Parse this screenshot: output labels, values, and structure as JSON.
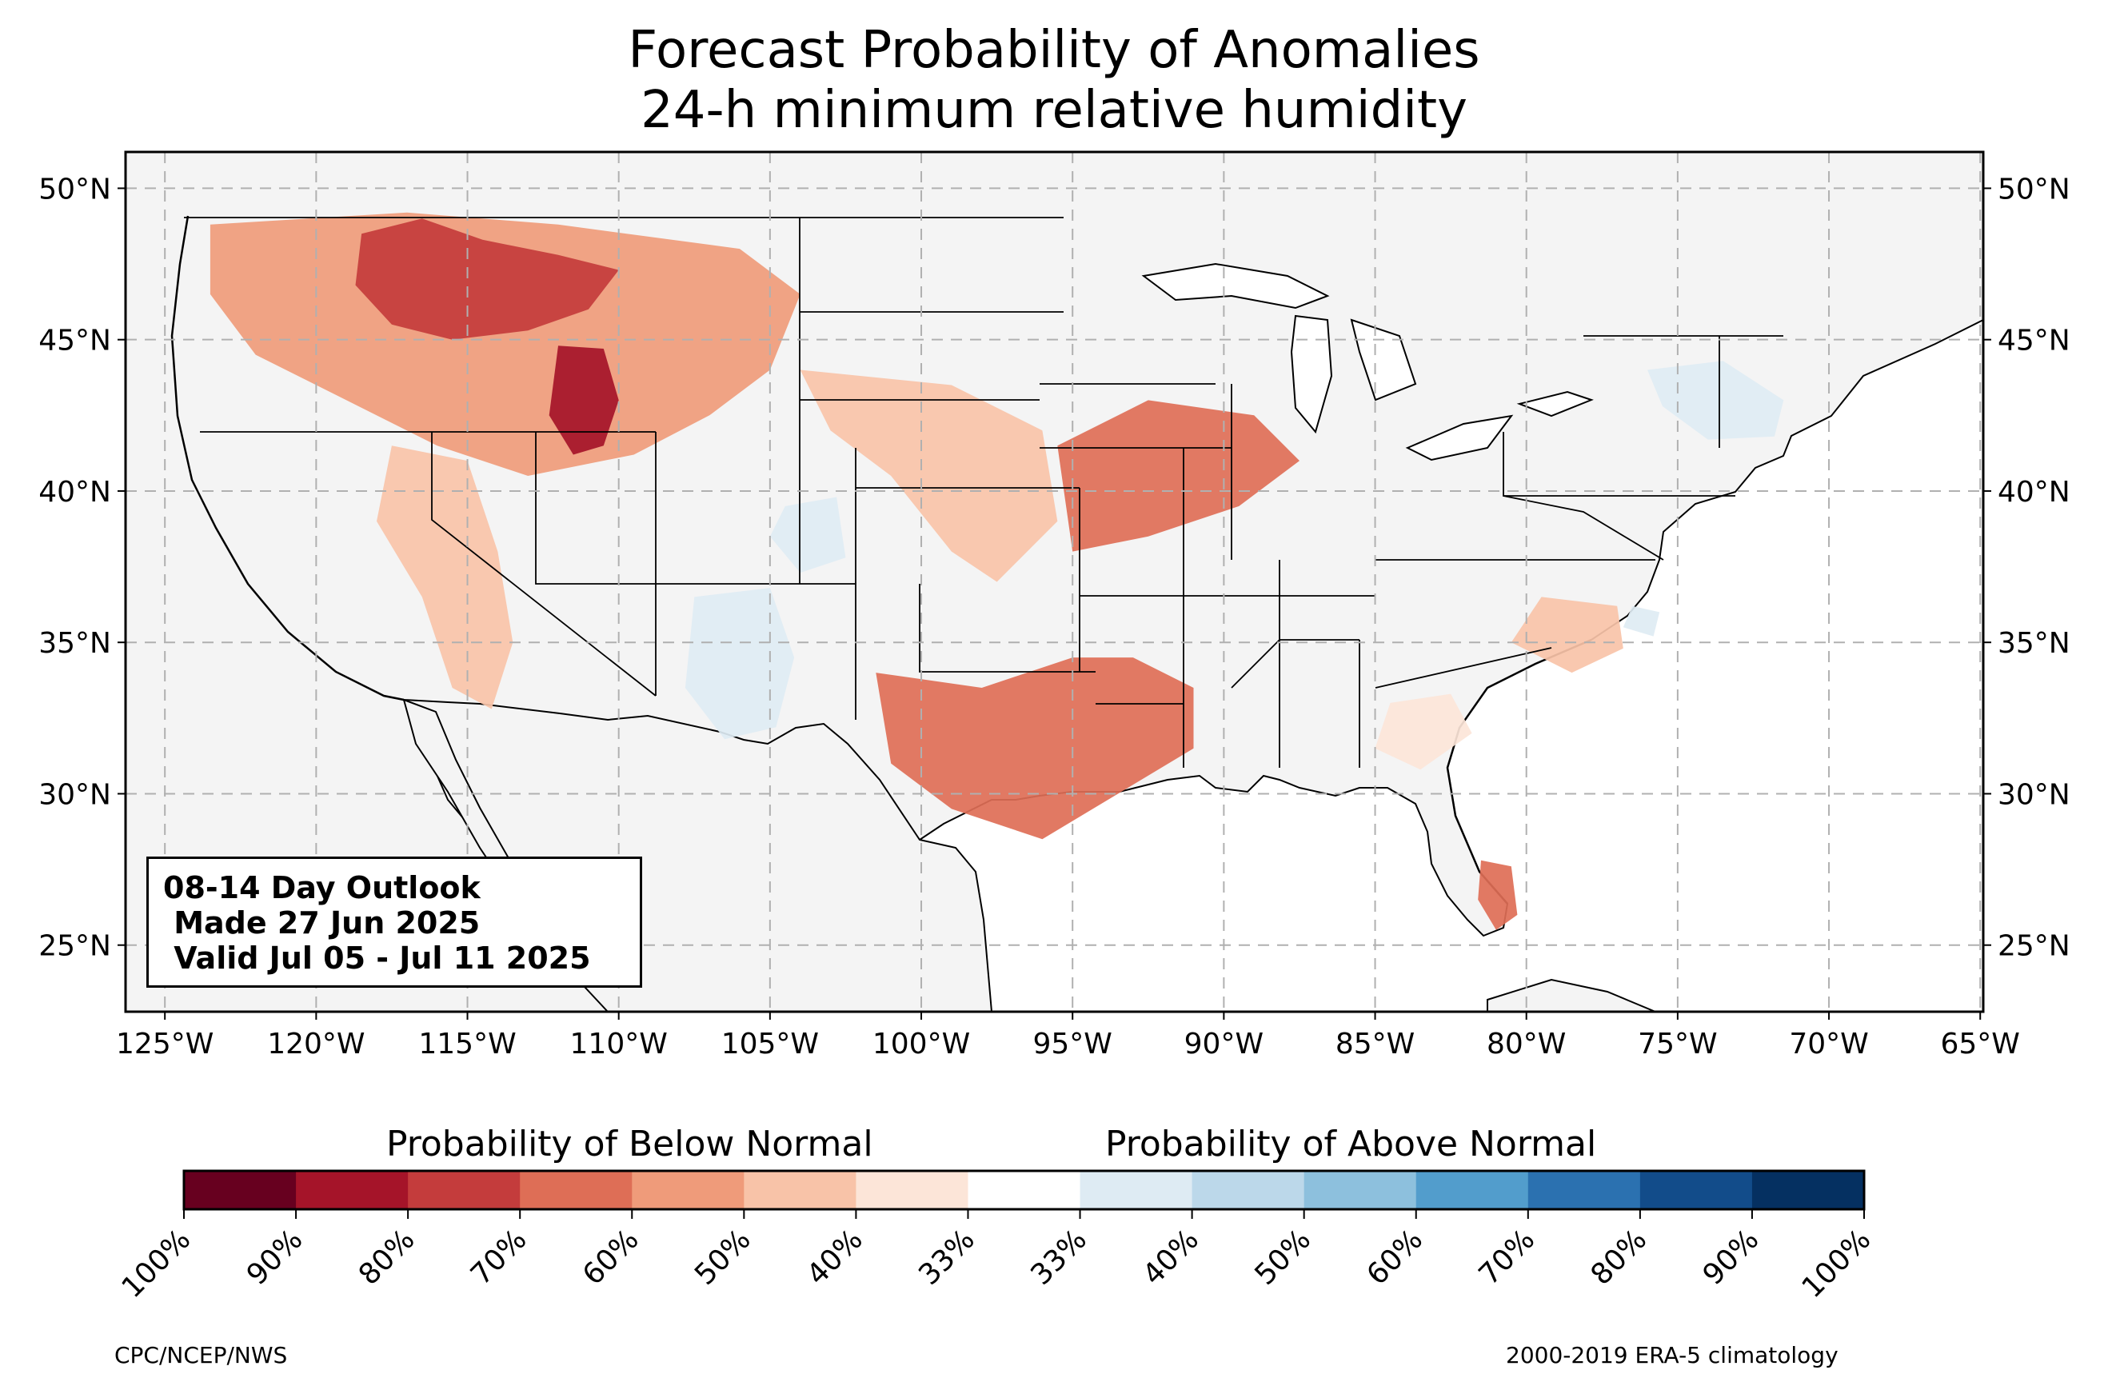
{
  "title": {
    "line1": "Forecast Probability of Anomalies",
    "line2": "24-h minimum relative humidity"
  },
  "map": {
    "region": "contiguous United States",
    "projection": "plate carree",
    "lon_range": [
      -126.3,
      -64.9
    ],
    "lat_range": [
      22.8,
      51.2
    ],
    "lat_ticks": [
      {
        "value": 50,
        "label": "50°N"
      },
      {
        "value": 45,
        "label": "45°N"
      },
      {
        "value": 40,
        "label": "40°N"
      },
      {
        "value": 35,
        "label": "35°N"
      },
      {
        "value": 30,
        "label": "30°N"
      },
      {
        "value": 25,
        "label": "25°N"
      }
    ],
    "lon_ticks": [
      {
        "value": -125,
        "label": "125°W"
      },
      {
        "value": -120,
        "label": "120°W"
      },
      {
        "value": -115,
        "label": "115°W"
      },
      {
        "value": -110,
        "label": "110°W"
      },
      {
        "value": -105,
        "label": "105°W"
      },
      {
        "value": -100,
        "label": "100°W"
      },
      {
        "value": -95,
        "label": "95°W"
      },
      {
        "value": -90,
        "label": "90°W"
      },
      {
        "value": -85,
        "label": "85°W"
      },
      {
        "value": -80,
        "label": "80°W"
      },
      {
        "value": -75,
        "label": "75°W"
      },
      {
        "value": -70,
        "label": "70°W"
      },
      {
        "value": -65,
        "label": "65°W"
      }
    ],
    "gridlines": "dashed",
    "land_color": "#f4f4f4",
    "anomaly_areas": [
      {
        "name": "Pacific Northwest / northern Rockies",
        "category": "below",
        "probability": "50-60%",
        "polygon": [
          [
            -123.5,
            48.8
          ],
          [
            -117,
            49.2
          ],
          [
            -112,
            48.8
          ],
          [
            -106,
            48
          ],
          [
            -104,
            46.5
          ],
          [
            -105,
            44
          ],
          [
            -107,
            42.5
          ],
          [
            -109.5,
            41.2
          ],
          [
            -113,
            40.5
          ],
          [
            -116,
            41.5
          ],
          [
            -119,
            43
          ],
          [
            -122,
            44.5
          ],
          [
            -123.5,
            46.5
          ]
        ]
      },
      {
        "name": "Idaho / western Montana core",
        "category": "below",
        "probability": "70-80%",
        "polygon": [
          [
            -118.5,
            48.5
          ],
          [
            -116.5,
            49
          ],
          [
            -114.5,
            48.3
          ],
          [
            -112,
            47.8
          ],
          [
            -110,
            47.3
          ],
          [
            -111,
            46
          ],
          [
            -113,
            45.3
          ],
          [
            -115.5,
            45
          ],
          [
            -117.5,
            45.5
          ],
          [
            -118.7,
            46.8
          ]
        ]
      },
      {
        "name": "western Wyoming core",
        "category": "below",
        "probability": "80-90%",
        "polygon": [
          [
            -112,
            44.8
          ],
          [
            -110.5,
            44.7
          ],
          [
            -110,
            43
          ],
          [
            -110.5,
            41.5
          ],
          [
            -111.5,
            41.2
          ],
          [
            -112.3,
            42.5
          ]
        ]
      },
      {
        "name": "Nevada / Arizona",
        "category": "below",
        "probability": "40-50%",
        "polygon": [
          [
            -117.5,
            41.5
          ],
          [
            -115,
            41
          ],
          [
            -114,
            38
          ],
          [
            -113.5,
            35
          ],
          [
            -114.2,
            32.8
          ],
          [
            -115.5,
            33.5
          ],
          [
            -116.5,
            36.5
          ],
          [
            -118,
            39
          ]
        ]
      },
      {
        "name": "central Plains",
        "category": "below",
        "probability": "40-50%",
        "polygon": [
          [
            -104,
            44
          ],
          [
            -99,
            43.5
          ],
          [
            -96,
            42
          ],
          [
            -95.5,
            39
          ],
          [
            -97.5,
            37
          ],
          [
            -99,
            38
          ],
          [
            -101,
            40.5
          ],
          [
            -103,
            42
          ]
        ]
      },
      {
        "name": "Missouri / Iowa / Illinois",
        "category": "below",
        "probability": "60-70%",
        "polygon": [
          [
            -95.5,
            41.5
          ],
          [
            -92.5,
            43
          ],
          [
            -89,
            42.5
          ],
          [
            -87.5,
            41
          ],
          [
            -89.5,
            39.5
          ],
          [
            -92.5,
            38.5
          ],
          [
            -95,
            38
          ]
        ]
      },
      {
        "name": "Texas / Louisiana / Arkansas",
        "category": "below",
        "probability": "60-70%",
        "polygon": [
          [
            -101.5,
            34
          ],
          [
            -98,
            33.5
          ],
          [
            -95,
            34.5
          ],
          [
            -93,
            34.5
          ],
          [
            -91,
            33.5
          ],
          [
            -91,
            31.5
          ],
          [
            -93.5,
            30
          ],
          [
            -96,
            28.5
          ],
          [
            -99,
            29.5
          ],
          [
            -101,
            31
          ]
        ]
      },
      {
        "name": "Carolinas",
        "category": "below",
        "probability": "40-50%",
        "polygon": [
          [
            -79.5,
            36.5
          ],
          [
            -77,
            36.2
          ],
          [
            -76.8,
            34.8
          ],
          [
            -78.5,
            34
          ],
          [
            -80.5,
            35
          ]
        ]
      },
      {
        "name": "Georgia",
        "category": "below",
        "probability": "33-40%",
        "polygon": [
          [
            -84.5,
            33
          ],
          [
            -82.5,
            33.3
          ],
          [
            -81.8,
            32
          ],
          [
            -83.5,
            30.8
          ],
          [
            -85,
            31.5
          ]
        ]
      },
      {
        "name": "south Florida",
        "category": "below",
        "probability": "60-70%",
        "polygon": [
          [
            -81.5,
            27.8
          ],
          [
            -80.5,
            27.6
          ],
          [
            -80.3,
            26
          ],
          [
            -81,
            25.5
          ],
          [
            -81.6,
            26.5
          ]
        ]
      },
      {
        "name": "New Mexico",
        "category": "above",
        "probability": "33-50%",
        "polygon": [
          [
            -107.5,
            36.5
          ],
          [
            -105,
            36.8
          ],
          [
            -104.2,
            34.5
          ],
          [
            -104.8,
            32.2
          ],
          [
            -106.5,
            31.8
          ],
          [
            -107.8,
            33.5
          ]
        ]
      },
      {
        "name": "southeast Colorado",
        "category": "above",
        "probability": "33-40%",
        "polygon": [
          [
            -104.5,
            39.5
          ],
          [
            -102.8,
            39.8
          ],
          [
            -102.5,
            37.8
          ],
          [
            -104,
            37.3
          ],
          [
            -105,
            38.5
          ]
        ]
      },
      {
        "name": "New England",
        "category": "above",
        "probability": "33-50%",
        "polygon": [
          [
            -76,
            44
          ],
          [
            -73.5,
            44.3
          ],
          [
            -71.5,
            43
          ],
          [
            -71.8,
            41.8
          ],
          [
            -74,
            41.7
          ],
          [
            -75.5,
            42.8
          ]
        ]
      },
      {
        "name": "North Carolina coast",
        "category": "above",
        "probability": "33-40%",
        "polygon": [
          [
            -76.5,
            36.2
          ],
          [
            -75.6,
            36
          ],
          [
            -75.8,
            35.2
          ],
          [
            -76.8,
            35.5
          ]
        ]
      }
    ]
  },
  "outlook": {
    "line1": "08-14 Day Outlook",
    "line2": " Made 27 Jun 2025",
    "line3": " Valid Jul 05 - Jul 11 2025"
  },
  "colorbar": {
    "below_label": "Probability of Below Normal",
    "above_label": "Probability of Above Normal",
    "bins": [
      {
        "color": "#67001f"
      },
      {
        "color": "#a51429"
      },
      {
        "color": "#c43c3c"
      },
      {
        "color": "#de6e56"
      },
      {
        "color": "#ef9b7a"
      },
      {
        "color": "#f8c3a8"
      },
      {
        "color": "#fce5d8"
      },
      {
        "color": "#ffffff"
      },
      {
        "color": "#deebf3"
      },
      {
        "color": "#bcd8ea"
      },
      {
        "color": "#8dc0dd"
      },
      {
        "color": "#529dcc"
      },
      {
        "color": "#2b71b0"
      },
      {
        "color": "#124c8a"
      },
      {
        "color": "#053061"
      }
    ],
    "tick_labels": [
      "100%",
      "90%",
      "80%",
      "70%",
      "60%",
      "50%",
      "40%",
      "33%",
      "33%",
      "40%",
      "50%",
      "60%",
      "70%",
      "80%",
      "90%",
      "100%"
    ]
  },
  "credits": {
    "left": "CPC/NCEP/NWS",
    "right": "2000-2019 ERA-5 climatology"
  }
}
